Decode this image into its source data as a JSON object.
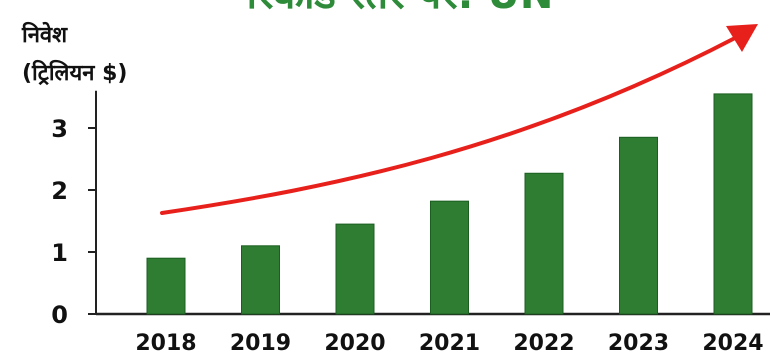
{
  "chart_data": {
    "type": "bar",
    "title": "रिकॉर्ड स्तर पर: UN",
    "ylabel_line1": "निवेश",
    "ylabel_line2": "(ट्रिलियन $)",
    "xlabel": "",
    "categories": [
      "2018",
      "2019",
      "2020",
      "2021",
      "2022",
      "2023",
      "2024"
    ],
    "values": [
      0.9,
      1.1,
      1.45,
      1.82,
      2.27,
      2.85,
      3.55
    ],
    "ylim": [
      0,
      3.6
    ],
    "yticks": [
      "0",
      "1",
      "2",
      "3"
    ],
    "grid": false,
    "legend": "none",
    "trend_arrow": "rising",
    "colors": {
      "bar": "#2e7d32",
      "bar_edge": "#1b5e20",
      "title": "#2e8b3a",
      "trend": "#e8201c",
      "axis": "#222222"
    }
  }
}
